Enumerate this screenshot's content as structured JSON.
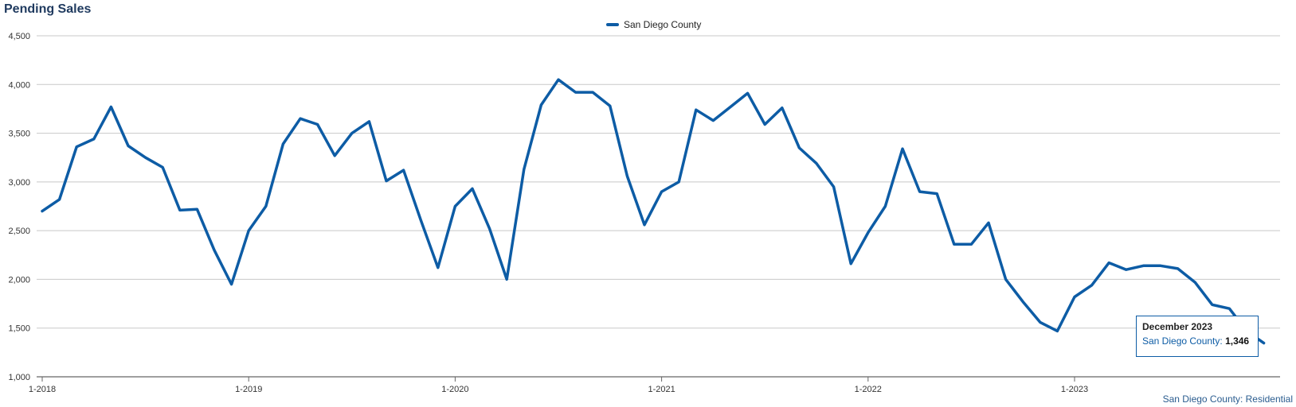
{
  "chart_data": {
    "type": "line",
    "title": "Pending Sales",
    "xlabel": "",
    "ylabel": "",
    "ylim": [
      1000,
      4500
    ],
    "yticks": [
      "1,000",
      "1,500",
      "2,000",
      "2,500",
      "3,000",
      "3,500",
      "4,000",
      "4,500"
    ],
    "yticks_values": [
      1000,
      1500,
      2000,
      2500,
      3000,
      3500,
      4000,
      4500
    ],
    "xticks": [
      "1-2018",
      "1-2019",
      "1-2020",
      "1-2021",
      "1-2022",
      "1-2023"
    ],
    "grid": true,
    "legend_position": "top-center",
    "series": [
      {
        "name": "San Diego County",
        "color": "#0d5ca5",
        "x": [
          "1-2018",
          "2-2018",
          "3-2018",
          "4-2018",
          "5-2018",
          "6-2018",
          "7-2018",
          "8-2018",
          "9-2018",
          "10-2018",
          "11-2018",
          "12-2018",
          "1-2019",
          "2-2019",
          "3-2019",
          "4-2019",
          "5-2019",
          "6-2019",
          "7-2019",
          "8-2019",
          "9-2019",
          "10-2019",
          "11-2019",
          "12-2019",
          "1-2020",
          "2-2020",
          "3-2020",
          "4-2020",
          "5-2020",
          "6-2020",
          "7-2020",
          "8-2020",
          "9-2020",
          "10-2020",
          "11-2020",
          "12-2020",
          "1-2021",
          "2-2021",
          "3-2021",
          "4-2021",
          "5-2021",
          "6-2021",
          "7-2021",
          "8-2021",
          "9-2021",
          "10-2021",
          "11-2021",
          "12-2021",
          "1-2022",
          "2-2022",
          "3-2022",
          "4-2022",
          "5-2022",
          "6-2022",
          "7-2022",
          "8-2022",
          "9-2022",
          "10-2022",
          "11-2022",
          "12-2022",
          "1-2023",
          "2-2023",
          "3-2023",
          "4-2023",
          "5-2023",
          "6-2023",
          "7-2023",
          "8-2023",
          "9-2023",
          "10-2023",
          "11-2023",
          "12-2023"
        ],
        "values": [
          2700,
          2820,
          3360,
          3440,
          3770,
          3370,
          3250,
          3150,
          2710,
          2720,
          2300,
          1950,
          2500,
          2750,
          3390,
          3650,
          3590,
          3270,
          3500,
          3620,
          3010,
          3120,
          2610,
          2120,
          2750,
          2930,
          2520,
          2000,
          3130,
          3790,
          4050,
          3920,
          3920,
          3780,
          3060,
          2560,
          2900,
          3000,
          3740,
          3630,
          3770,
          3910,
          3590,
          3760,
          3350,
          3190,
          2950,
          2160,
          2480,
          2750,
          3340,
          2900,
          2880,
          2360,
          2360,
          2580,
          2000,
          1770,
          1560,
          1470,
          1820,
          1940,
          2170,
          2100,
          2140,
          2140,
          2110,
          1970,
          1740,
          1700,
          1470,
          1346
        ]
      }
    ],
    "tooltip": {
      "title": "December 2023",
      "series_label": "San Diego County:",
      "value": "1,346"
    },
    "footer": "San Diego County: Residential"
  }
}
